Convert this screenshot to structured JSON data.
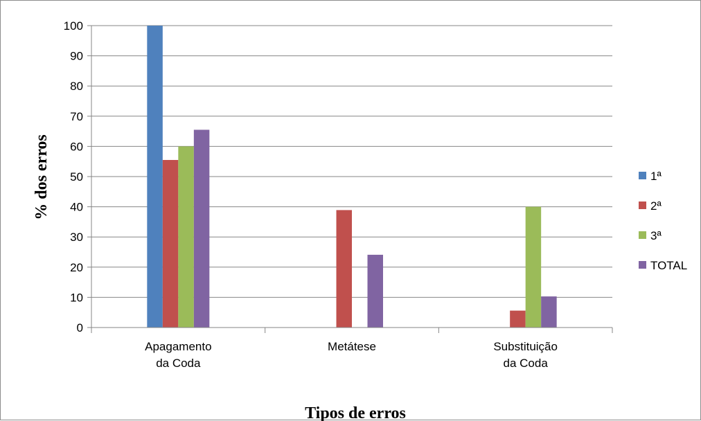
{
  "chart_data": {
    "type": "bar",
    "title": "",
    "xlabel": "Tipos de erros",
    "ylabel": "% dos erros",
    "ylim": [
      0,
      100
    ],
    "yticks": [
      "0",
      "10",
      "20",
      "30",
      "40",
      "50",
      "60",
      "70",
      "80",
      "90",
      "100"
    ],
    "grid": true,
    "legend_position": "right",
    "categories": [
      [
        "Apagamento",
        "da Coda"
      ],
      [
        "Metátese"
      ],
      [
        "Substituição",
        "da Coda"
      ]
    ],
    "series": [
      {
        "name": "1ª",
        "color": "#4f81bd",
        "values": [
          100,
          0,
          0
        ]
      },
      {
        "name": "2ª",
        "color": "#c0504d",
        "values": [
          55.5,
          38.9,
          5.6
        ]
      },
      {
        "name": "3ª",
        "color": "#9bbb59",
        "values": [
          60,
          0,
          40
        ]
      },
      {
        "name": "TOTAL",
        "color": "#8064a2",
        "values": [
          65.5,
          24.1,
          10.3
        ]
      }
    ]
  }
}
